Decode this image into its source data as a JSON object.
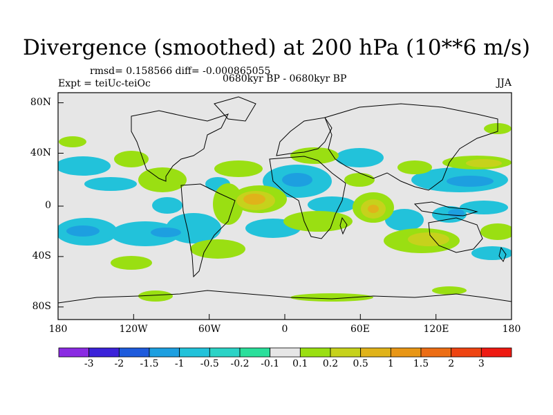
{
  "title": "Divergence (smoothed) at 200 hPa (10**6 m/s)",
  "stats": "rmsd= 0.158566 diff= -0.000865055",
  "experiment": "Expt = teiUc-teiOc",
  "period": "0680kyr BP - 0680kyr BP",
  "season": "JJA",
  "map": {
    "lat_ticks": [
      "80N",
      "40N",
      "0",
      "40S",
      "80S"
    ],
    "lon_ticks": [
      "180",
      "120W",
      "60W",
      "0",
      "60E",
      "120E",
      "180"
    ]
  },
  "colorbar": {
    "labels": [
      "-3",
      "-2",
      "-1.5",
      "-1",
      "-0.5",
      "-0.2",
      "-0.1",
      "0.1",
      "0.2",
      "0.5",
      "1",
      "1.5",
      "2",
      "3"
    ],
    "colors": [
      "#8a2be2",
      "#3b22d9",
      "#1e5bdc",
      "#1d9fe0",
      "#22c2da",
      "#2bd3c6",
      "#2adf9b",
      "#e6e6e6",
      "#9adf12",
      "#c6d21c",
      "#e0b31a",
      "#e89615",
      "#ec6d14",
      "#ee4412",
      "#ee1a12"
    ]
  },
  "colors": {
    "ocean_bg": "#e6e6e6",
    "neg_light": "#22c2da",
    "neg_mid": "#1d9fe0",
    "pos_light": "#9adf12",
    "pos_mid": "#c6d21c",
    "pos_strong": "#e0b31a"
  }
}
